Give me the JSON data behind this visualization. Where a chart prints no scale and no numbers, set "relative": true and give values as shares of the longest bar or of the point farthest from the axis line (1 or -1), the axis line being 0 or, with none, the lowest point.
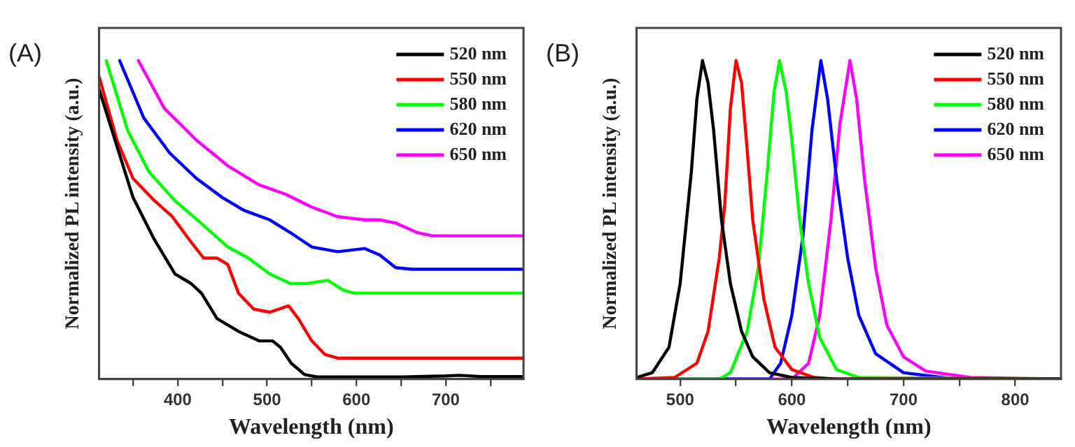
{
  "chart_data": [
    {
      "type": "line",
      "annotations": [
        "(A)"
      ],
      "xlabel": "Wavelength (nm)",
      "ylabel": "Normalized PL intensity (a.u.)",
      "relative": true,
      "xlim": [
        312,
        787
      ],
      "xticks": [
        {
          "value": 350,
          "label": null
        },
        400,
        {
          "value": 450,
          "label": null
        },
        500,
        {
          "value": 550,
          "label": null
        },
        600,
        {
          "value": 650,
          "label": null
        },
        700,
        {
          "value": 750,
          "label": null
        }
      ],
      "tick_labels": "x",
      "legend": "top right",
      "grid": false,
      "marker": "none",
      "line_style": "solid",
      "series": [
        {
          "name": "520 nm",
          "color": "#000000",
          "x": [
            312,
            350,
            373.5,
            397,
            415,
            426.5,
            444,
            468,
            491,
            506,
            515,
            527,
            542,
            556,
            600,
            650,
            700,
            715,
            740,
            787
          ],
          "values": [
            0.91,
            0.57,
            0.44,
            0.33,
            0.3,
            0.27,
            0.19,
            0.15,
            0.12,
            0.12,
            0.1,
            0.05,
            0.014,
            0.007,
            0.007,
            0.007,
            0.01,
            0.012,
            0.008,
            0.008
          ]
        },
        {
          "name": "550 nm",
          "color": "#ff0000",
          "x": [
            312,
            332,
            350,
            374,
            394,
            415,
            429,
            444,
            456,
            468,
            485,
            503,
            524,
            535,
            550,
            565,
            579,
            650,
            720,
            787
          ],
          "values": [
            0.95,
            0.75,
            0.63,
            0.56,
            0.51,
            0.43,
            0.38,
            0.38,
            0.36,
            0.27,
            0.22,
            0.21,
            0.23,
            0.19,
            0.12,
            0.077,
            0.066,
            0.066,
            0.066,
            0.066
          ]
        },
        {
          "name": "580 nm",
          "color": "#00ff00",
          "x": [
            320,
            344,
            368,
            397,
            426,
            456,
            479,
            503,
            526,
            544,
            568,
            585,
            597,
            644,
            720,
            787
          ],
          "values": [
            1,
            0.78,
            0.65,
            0.56,
            0.49,
            0.415,
            0.38,
            0.33,
            0.3,
            0.3,
            0.31,
            0.28,
            0.27,
            0.27,
            0.27,
            0.27
          ]
        },
        {
          "name": "620 nm",
          "color": "#0000ff",
          "x": [
            335,
            362,
            391,
            421,
            450,
            474,
            503,
            526,
            550,
            579,
            609,
            626,
            644,
            662,
            720,
            787
          ],
          "values": [
            1,
            0.82,
            0.71,
            0.63,
            0.57,
            0.53,
            0.5,
            0.46,
            0.415,
            0.4,
            0.41,
            0.39,
            0.35,
            0.345,
            0.345,
            0.345
          ]
        },
        {
          "name": "650 nm",
          "color": "#ff00ff",
          "x": [
            356,
            385,
            421,
            456,
            491,
            521,
            550,
            579,
            609,
            626,
            644,
            668,
            685,
            740,
            787
          ],
          "values": [
            1,
            0.85,
            0.75,
            0.67,
            0.61,
            0.58,
            0.54,
            0.51,
            0.5,
            0.5,
            0.49,
            0.46,
            0.45,
            0.45,
            0.45
          ]
        }
      ]
    },
    {
      "type": "line",
      "annotations": [
        "(B)"
      ],
      "xlabel": "Wavelength (nm)",
      "ylabel": "Normalized PL intensity (a.u.)",
      "relative": true,
      "xlim": [
        461,
        841
      ],
      "xticks": [
        500,
        {
          "value": 550,
          "label": null
        },
        600,
        {
          "value": 650,
          "label": null
        },
        700,
        {
          "value": 750,
          "label": null
        },
        800
      ],
      "tick_labels": "x",
      "legend": "top right",
      "grid": false,
      "marker": "none",
      "line_style": "solid",
      "series": [
        {
          "name": "520 nm",
          "color": "#000000",
          "x": [
            461,
            475,
            490,
            500,
            510,
            515,
            520,
            525,
            530,
            537,
            545,
            555,
            565,
            580,
            600,
            640,
            841
          ],
          "values": [
            0.005,
            0.02,
            0.1,
            0.3,
            0.65,
            0.88,
            1,
            0.93,
            0.78,
            0.5,
            0.3,
            0.15,
            0.07,
            0.02,
            0.005,
            0,
            0
          ]
        },
        {
          "name": "550 nm",
          "color": "#ff0000",
          "x": [
            461,
            495,
            515,
            525,
            535,
            540,
            545,
            550,
            555,
            560,
            565,
            575,
            585,
            600,
            620,
            640,
            841
          ],
          "values": [
            0,
            0.005,
            0.05,
            0.15,
            0.38,
            0.55,
            0.85,
            1,
            0.93,
            0.72,
            0.5,
            0.25,
            0.1,
            0.03,
            0.005,
            0,
            0
          ]
        },
        {
          "name": "580 nm",
          "color": "#00ff00",
          "x": [
            461,
            535,
            545,
            560,
            570,
            578,
            584,
            589,
            595,
            600,
            607,
            615,
            625,
            640,
            660,
            841
          ],
          "values": [
            0,
            0,
            0.02,
            0.15,
            0.35,
            0.65,
            0.9,
            1,
            0.9,
            0.75,
            0.5,
            0.3,
            0.13,
            0.03,
            0.005,
            0
          ]
        },
        {
          "name": "620 nm",
          "color": "#0000ff",
          "x": [
            461,
            580,
            590,
            600,
            610,
            618,
            626,
            632,
            640,
            650,
            660,
            675,
            700,
            740,
            841
          ],
          "values": [
            0,
            0,
            0.05,
            0.2,
            0.45,
            0.78,
            1,
            0.88,
            0.63,
            0.38,
            0.2,
            0.08,
            0.02,
            0.003,
            0
          ]
        },
        {
          "name": "650 nm",
          "color": "#ff00ff",
          "x": [
            461,
            600,
            615,
            625,
            635,
            643,
            652,
            658,
            665,
            675,
            685,
            700,
            720,
            760,
            841
          ],
          "values": [
            0,
            0,
            0.05,
            0.2,
            0.5,
            0.8,
            1,
            0.88,
            0.63,
            0.35,
            0.17,
            0.07,
            0.025,
            0.005,
            0
          ]
        }
      ]
    }
  ]
}
